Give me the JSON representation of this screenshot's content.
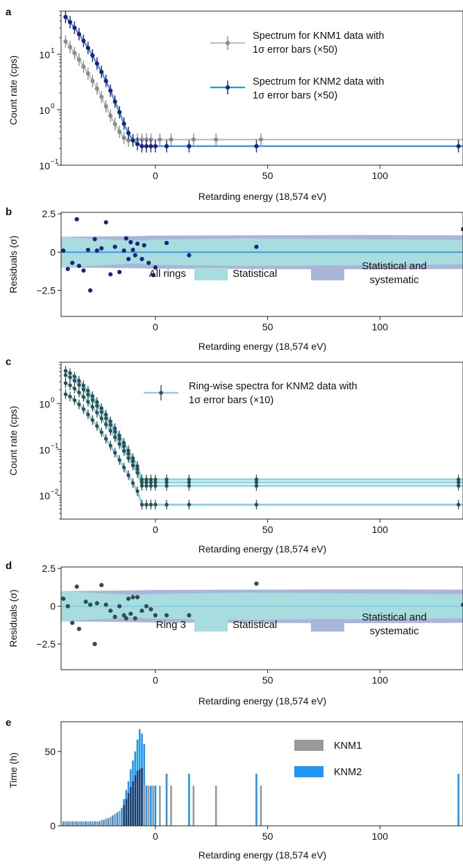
{
  "colors": {
    "knm1": "#8c8c8c",
    "knm1_line": "#c0c0c0",
    "knm2": "#1a237e",
    "knm2_line": "#2f8fe8",
    "ring": "#2e4f4f",
    "ring_line": "#7fd0e0",
    "band_stat": "#a8dde0",
    "band_syst": "#aab6d8",
    "knm1_bar": "#999999",
    "knm2_bar": "#2196f3",
    "overlap_bar": "#1b3d6e"
  },
  "chart_data": [
    {
      "panel": "a",
      "type": "scatter",
      "xlabel": "Retarding energy (18,574 eV)",
      "ylabel": "Count rate (cps)",
      "xlim": [
        -42,
        137
      ],
      "ylim": [
        0.1,
        60
      ],
      "yscale": "log",
      "xticks": [
        0,
        50,
        100
      ],
      "yticks": [
        {
          "v": 0.1,
          "base": "10",
          "exp": "−1"
        },
        {
          "v": 1,
          "base": "10",
          "exp": "0"
        },
        {
          "v": 10,
          "base": "10",
          "exp": "1"
        }
      ],
      "legend": [
        "Spectrum for KNM1 data with",
        "1σ error bars (×50)",
        "Spectrum for KNM2 data with",
        "1σ error bars (×50)"
      ],
      "series": [
        {
          "name": "KNM1",
          "x": [
            -40,
            -38,
            -36,
            -34,
            -32,
            -30,
            -28,
            -26,
            -24,
            -22,
            -20,
            -18,
            -16,
            -14,
            -12,
            -10,
            -8,
            -6,
            -4,
            -2,
            2,
            7,
            17,
            27,
            47
          ],
          "y": [
            17,
            13.5,
            10.5,
            8.0,
            6.0,
            4.5,
            3.3,
            2.4,
            1.7,
            1.15,
            0.78,
            0.55,
            0.4,
            0.31,
            0.28,
            0.28,
            0.29,
            0.29,
            0.29,
            0.29,
            0.29,
            0.29,
            0.29,
            0.29,
            0.29
          ],
          "fit_level": 0.29
        },
        {
          "name": "KNM2",
          "x": [
            -40,
            -38,
            -36,
            -34,
            -32,
            -30,
            -28,
            -26,
            -24,
            -22,
            -20,
            -18,
            -16,
            -14,
            -12,
            -10,
            -8,
            -6,
            -4,
            -2,
            0,
            5,
            15,
            45,
            135
          ],
          "y": [
            47,
            38,
            30,
            23,
            17.5,
            13,
            9.5,
            6.8,
            4.8,
            3.3,
            2.2,
            1.4,
            0.9,
            0.56,
            0.38,
            0.28,
            0.24,
            0.22,
            0.22,
            0.22,
            0.22,
            0.22,
            0.22,
            0.22,
            0.22
          ],
          "fit_level": 0.22
        }
      ]
    },
    {
      "panel": "b",
      "type": "scatter",
      "xlabel": "Retarding energy (18,574 eV)",
      "ylabel": "Residuals (σ)",
      "xlim": [
        -42,
        137
      ],
      "ylim": [
        -4.2,
        2.6
      ],
      "xticks": [
        0,
        50,
        100
      ],
      "yticks": [
        {
          "v": 2.5,
          "t": "2.5"
        },
        {
          "v": 0,
          "t": "0"
        },
        {
          "v": -2.5,
          "t": "−2.5"
        }
      ],
      "legend": [
        "All rings",
        "Statistical",
        "Statistical and",
        "systematic"
      ],
      "x": [
        -41,
        -39,
        -37,
        -35,
        -34,
        -32,
        -30,
        -29,
        -27,
        -26,
        -24,
        -22,
        -20,
        -18,
        -16,
        -14,
        -13,
        -12,
        -11,
        -10,
        -9,
        -8,
        -6,
        -5,
        -3,
        -1,
        0,
        5,
        15,
        45,
        137
      ],
      "y": [
        0.1,
        -1.1,
        -0.7,
        2.15,
        -0.9,
        -1.2,
        0.15,
        -2.5,
        0.85,
        0.1,
        0.25,
        1.95,
        -1.45,
        0.35,
        -1.3,
        0.1,
        0.9,
        -0.45,
        0.65,
        0.15,
        -0.2,
        0.55,
        -0.45,
        0.45,
        -0.7,
        -1.5,
        -1.0,
        0.6,
        -0.2,
        0.35,
        1.5
      ]
    },
    {
      "panel": "c",
      "type": "scatter",
      "xlabel": "Retarding energy (18,574 eV)",
      "ylabel": "Count rate (cps)",
      "xlim": [
        -42,
        137
      ],
      "ylim": [
        0.003,
        8
      ],
      "yscale": "log",
      "xticks": [
        0,
        50,
        100
      ],
      "yticks": [
        {
          "v": 0.01,
          "base": "10",
          "exp": "−2"
        },
        {
          "v": 0.1,
          "base": "10",
          "exp": "−1"
        },
        {
          "v": 1,
          "base": "10",
          "exp": "0"
        }
      ],
      "legend": [
        "Ring-wise spectra for KNM2 data with",
        "1σ error bars (×10)"
      ],
      "levels": [
        0.022,
        0.019,
        0.016,
        0.0062
      ],
      "x": [
        -40,
        -38,
        -36,
        -34,
        -32,
        -30,
        -28,
        -26,
        -24,
        -22,
        -20,
        -18,
        -16,
        -14,
        -12,
        -10,
        -8,
        -6,
        -4,
        -2,
        0,
        5,
        15,
        45,
        135
      ]
    },
    {
      "panel": "d",
      "type": "scatter",
      "xlabel": "Retarding energy (18,574 eV)",
      "ylabel": "Residuals (σ)",
      "xlim": [
        -42,
        137
      ],
      "ylim": [
        -4.2,
        2.6
      ],
      "xticks": [
        0,
        50,
        100
      ],
      "yticks": [
        {
          "v": 2.5,
          "t": "2.5"
        },
        {
          "v": 0,
          "t": "0"
        },
        {
          "v": -2.5,
          "t": "−2.5"
        }
      ],
      "legend": [
        "Ring 3",
        "Statistical",
        "Statistical and",
        "systematic"
      ],
      "x": [
        -41,
        -39,
        -37,
        -35,
        -34,
        -31,
        -29,
        -27,
        -26,
        -24,
        -22,
        -20,
        -18,
        -16,
        -14,
        -13,
        -12,
        -11,
        -10,
        -9,
        -8,
        -6,
        -4,
        -2,
        0,
        5,
        15,
        45,
        137
      ],
      "y": [
        0.5,
        0.0,
        -1.1,
        1.3,
        -1.5,
        0.3,
        0.1,
        -2.5,
        0.2,
        1.4,
        0.1,
        -0.3,
        -0.7,
        0.0,
        -0.6,
        -0.8,
        0.5,
        -0.5,
        0.6,
        -0.8,
        0.6,
        -0.3,
        0.0,
        -0.2,
        -0.6,
        -0.6,
        -0.6,
        1.5,
        0.1
      ]
    },
    {
      "panel": "e",
      "type": "bar",
      "xlabel": "Retarding energy (18,574 eV)",
      "ylabel": "Time (h)",
      "xlim": [
        -42,
        137
      ],
      "ylim": [
        0,
        70
      ],
      "xticks": [
        0,
        50,
        100
      ],
      "yticks": [
        {
          "v": 0,
          "t": "0"
        },
        {
          "v": 50,
          "t": "50"
        }
      ],
      "legend": [
        "KNM1",
        "KNM2"
      ],
      "series": [
        {
          "name": "KNM1",
          "x": [
            -40,
            -38,
            -36,
            -34,
            -32,
            -30,
            -28,
            -26,
            -24,
            -22,
            -20,
            -18,
            -16,
            -14,
            -13,
            -12,
            -11,
            -10,
            -9,
            -8,
            -7,
            -6,
            -5,
            -3,
            -1,
            2,
            7,
            17,
            27,
            47
          ],
          "values": [
            3,
            3,
            3,
            3,
            3,
            3,
            3,
            3,
            4,
            5,
            6,
            8,
            10,
            14,
            18,
            22,
            26,
            30,
            34,
            37,
            38,
            39,
            27,
            27,
            27,
            27,
            27,
            27,
            27,
            27
          ]
        },
        {
          "name": "KNM2",
          "x": [
            -41,
            -39,
            -37,
            -35,
            -33,
            -31,
            -29,
            -27,
            -25,
            -23,
            -21,
            -19,
            -17,
            -15,
            -14,
            -13,
            -12,
            -11,
            -10,
            -9,
            -8,
            -7,
            -6,
            -5,
            -4,
            -2,
            0,
            5,
            15,
            45,
            135
          ],
          "values": [
            3,
            3,
            3,
            3,
            3,
            3,
            3,
            3,
            3,
            4,
            5,
            7,
            9,
            12,
            18,
            24,
            30,
            38,
            44,
            50,
            58,
            65,
            62,
            55,
            27,
            27,
            27,
            35,
            35,
            35,
            35
          ]
        }
      ]
    }
  ]
}
